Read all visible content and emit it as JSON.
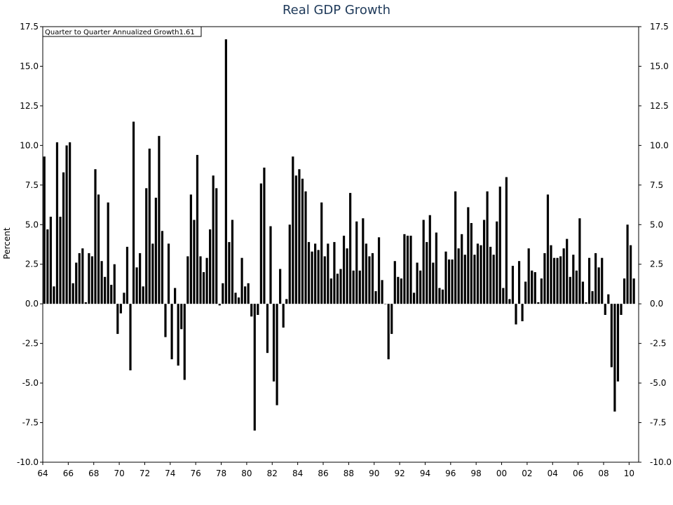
{
  "chart_data": {
    "type": "bar",
    "title": "Real GDP Growth",
    "ylabel": "Percent",
    "legend": "Quarter to Quarter Annualized Growth1.61",
    "legend_placement": "top-left",
    "ylim": [
      -10,
      17.5
    ],
    "y_ticks": [
      "17.5",
      "15.0",
      "12.5",
      "10.0",
      "7.5",
      "5.0",
      "2.5",
      "0.0",
      "-2.5",
      "-5.0",
      "-7.5",
      "-10.0"
    ],
    "x_ticks": [
      "64",
      "66",
      "68",
      "70",
      "72",
      "74",
      "76",
      "78",
      "80",
      "82",
      "84",
      "86",
      "88",
      "90",
      "92",
      "94",
      "96",
      "98",
      "00",
      "02",
      "04",
      "06",
      "08",
      "10"
    ],
    "x_start_year": 1964,
    "x_end_year": 2010.75,
    "quarters_start": "1964Q1",
    "bar_color": "#000000",
    "values": [
      9.3,
      4.7,
      5.5,
      1.1,
      10.2,
      5.5,
      8.3,
      10.0,
      10.2,
      1.3,
      2.6,
      3.2,
      3.5,
      0.1,
      3.2,
      3.0,
      8.5,
      6.9,
      2.7,
      1.7,
      6.4,
      1.2,
      2.5,
      -1.9,
      -0.6,
      0.7,
      3.6,
      -4.2,
      11.5,
      2.3,
      3.2,
      1.1,
      7.3,
      9.8,
      3.8,
      6.7,
      10.6,
      4.6,
      -2.1,
      3.8,
      -3.5,
      1.0,
      -3.9,
      -1.6,
      -4.8,
      3.0,
      6.9,
      5.3,
      9.4,
      3.0,
      2.0,
      2.9,
      4.7,
      8.1,
      7.3,
      -0.1,
      1.3,
      16.7,
      3.9,
      5.3,
      0.7,
      0.4,
      2.9,
      1.1,
      1.3,
      -0.8,
      -8.0,
      -0.7,
      7.6,
      8.6,
      -3.1,
      4.9,
      -4.9,
      -6.4,
      2.2,
      -1.5,
      0.3,
      5.0,
      9.3,
      8.1,
      8.5,
      7.9,
      7.1,
      3.9,
      3.3,
      3.8,
      3.4,
      6.4,
      3.0,
      3.8,
      1.6,
      3.9,
      1.9,
      2.2,
      4.3,
      3.5,
      7.0,
      2.1,
      5.2,
      2.1,
      5.4,
      3.8,
      3.0,
      3.2,
      0.8,
      4.2,
      1.5,
      0.0,
      -3.5,
      -1.9,
      2.7,
      1.7,
      1.6,
      4.4,
      4.3,
      4.3,
      0.7,
      2.6,
      2.1,
      5.3,
      3.9,
      5.6,
      2.6,
      4.5,
      1.0,
      0.9,
      3.3,
      2.8,
      2.8,
      7.1,
      3.5,
      4.4,
      3.1,
      6.1,
      5.1,
      3.1,
      3.8,
      3.7,
      5.3,
      7.1,
      3.6,
      3.1,
      5.2,
      7.4,
      1.0,
      8.0,
      0.3,
      2.4,
      -1.3,
      2.7,
      -1.1,
      1.4,
      3.5,
      2.1,
      2.0,
      0.1,
      1.6,
      3.2,
      6.9,
      3.7,
      2.9,
      2.9,
      3.0,
      3.5,
      4.1,
      1.7,
      3.1,
      2.1,
      5.4,
      1.4,
      0.1,
      2.9,
      0.8,
      3.2,
      2.3,
      2.9,
      -0.7,
      0.6,
      -4.0,
      -6.8,
      -4.9,
      -0.7,
      1.6,
      5.0,
      3.7,
      1.6
    ]
  }
}
